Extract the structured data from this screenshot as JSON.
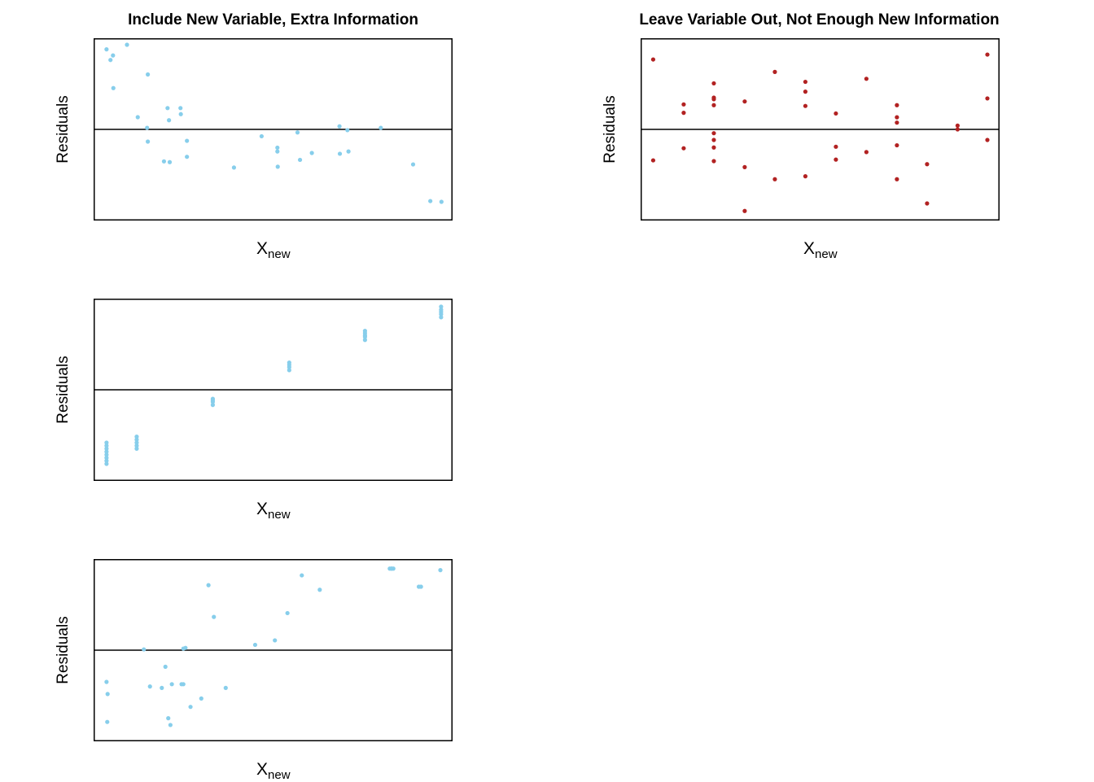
{
  "colors": {
    "light": "#87ceeb",
    "dark": "#b22222",
    "axis": "#000000"
  },
  "panels": [
    {
      "title": "Include New Variable, Extra Information",
      "ylabel": "Residuals",
      "xlabel_main": "X",
      "xlabel_sub": "new"
    },
    {
      "title": "Leave Variable Out, Not Enough New Information",
      "ylabel": "Residuals",
      "xlabel_main": "X",
      "xlabel_sub": "new"
    },
    {
      "title": "",
      "ylabel": "Residuals",
      "xlabel_main": "X",
      "xlabel_sub": "new"
    },
    {
      "title": "",
      "ylabel": "Residuals",
      "xlabel_main": "X",
      "xlabel_sub": "new"
    }
  ],
  "chart_data": [
    {
      "type": "scatter",
      "title": "Include New Variable, Extra Information",
      "xlabel": "Xnew",
      "ylabel": "Residuals",
      "xlim": [
        0,
        1
      ],
      "ylim": [
        -1,
        1
      ],
      "hline": 0,
      "grid": false,
      "color": "#87ceeb",
      "x": [
        0.036,
        0.047,
        0.054,
        0.055,
        0.093,
        0.151,
        0.123,
        0.149,
        0.206,
        0.21,
        0.242,
        0.243,
        0.212,
        0.151,
        0.196,
        0.26,
        0.26,
        0.391,
        0.468,
        0.512,
        0.512,
        0.513,
        0.568,
        0.575,
        0.608,
        0.685,
        0.686,
        0.707,
        0.71,
        0.8,
        0.89,
        0.938,
        0.969
      ],
      "y": [
        0.946,
        0.82,
        0.874,
        0.488,
        1.0,
        0.649,
        0.144,
        0.018,
        0.252,
        0.108,
        0.252,
        0.18,
        -0.387,
        -0.144,
        -0.378,
        -0.135,
        -0.324,
        -0.451,
        -0.081,
        -0.216,
        -0.261,
        -0.441,
        -0.036,
        -0.36,
        -0.279,
        0.036,
        -0.288,
        -0.009,
        -0.261,
        0.018,
        -0.414,
        -0.847,
        -0.856
      ]
    },
    {
      "type": "scatter",
      "title": "Leave Variable Out, Not Enough New Information",
      "xlabel": "Xnew",
      "ylabel": "Residuals",
      "xlim": [
        0,
        1
      ],
      "ylim": [
        -1,
        1
      ],
      "hline": 0,
      "grid": false,
      "color": "#b22222",
      "x": [
        0.035,
        0.035,
        0.12,
        0.12,
        0.12,
        0.204,
        0.204,
        0.204,
        0.204,
        0.204,
        0.204,
        0.204,
        0.204,
        0.29,
        0.29,
        0.29,
        0.374,
        0.374,
        0.459,
        0.459,
        0.459,
        0.459,
        0.544,
        0.544,
        0.544,
        0.629,
        0.629,
        0.714,
        0.714,
        0.714,
        0.714,
        0.714,
        0.798,
        0.798,
        0.883,
        0.883,
        0.966,
        0.966,
        0.966
      ],
      "y": [
        0.826,
        -0.366,
        0.295,
        0.196,
        -0.223,
        0.544,
        0.375,
        0.357,
        0.286,
        -0.045,
        -0.125,
        -0.214,
        -0.375,
        0.33,
        -0.446,
        -0.964,
        0.679,
        -0.589,
        0.562,
        0.446,
        0.277,
        -0.554,
        0.188,
        -0.205,
        -0.357,
        0.598,
        -0.268,
        0.286,
        0.143,
        0.08,
        -0.188,
        -0.589,
        -0.411,
        -0.875,
        0.045,
        0.0,
        0.884,
        0.366,
        -0.125
      ]
    },
    {
      "type": "scatter",
      "xlabel": "Xnew",
      "ylabel": "Residuals",
      "xlim": [
        0,
        1
      ],
      "ylim": [
        -1,
        1
      ],
      "hline": 0,
      "grid": false,
      "color": "#87ceeb",
      "x": [
        0.036,
        0.036,
        0.036,
        0.036,
        0.036,
        0.036,
        0.036,
        0.036,
        0.12,
        0.12,
        0.12,
        0.12,
        0.12,
        0.332,
        0.332,
        0.332,
        0.332,
        0.545,
        0.545,
        0.545,
        0.545,
        0.756,
        0.756,
        0.756,
        0.756,
        0.756,
        0.968,
        0.968,
        0.968,
        0.968,
        0.968
      ],
      "y": [
        -0.875,
        -0.839,
        -0.804,
        -0.768,
        -0.732,
        -0.696,
        -0.661,
        -0.625,
        -0.696,
        -0.661,
        -0.625,
        -0.589,
        -0.554,
        -0.179,
        -0.143,
        -0.125,
        -0.107,
        0.232,
        0.268,
        0.295,
        0.321,
        0.589,
        0.625,
        0.643,
        0.67,
        0.696,
        0.857,
        0.893,
        0.92,
        0.946,
        0.982
      ]
    },
    {
      "type": "scatter",
      "xlabel": "Xnew",
      "ylabel": "Residuals",
      "xlim": [
        0,
        1
      ],
      "ylim": [
        -1,
        1
      ],
      "hline": 0,
      "grid": false,
      "color": "#87ceeb",
      "x": [
        0.036,
        0.039,
        0.038,
        0.14,
        0.157,
        0.19,
        0.2,
        0.208,
        0.214,
        0.218,
        0.245,
        0.25,
        0.25,
        0.256,
        0.27,
        0.3,
        0.32,
        0.335,
        0.368,
        0.45,
        0.505,
        0.54,
        0.58,
        0.63,
        0.825,
        0.83,
        0.83,
        0.835,
        0.906,
        0.912,
        0.966
      ],
      "y": [
        -0.375,
        -0.518,
        -0.848,
        0.009,
        -0.429,
        -0.446,
        -0.196,
        -0.804,
        -0.884,
        -0.402,
        -0.402,
        0.018,
        -0.402,
        0.027,
        -0.67,
        -0.571,
        0.768,
        0.393,
        -0.446,
        0.063,
        0.116,
        0.438,
        0.884,
        0.714,
        0.964,
        0.964,
        0.964,
        0.964,
        0.75,
        0.75,
        0.946
      ]
    }
  ]
}
